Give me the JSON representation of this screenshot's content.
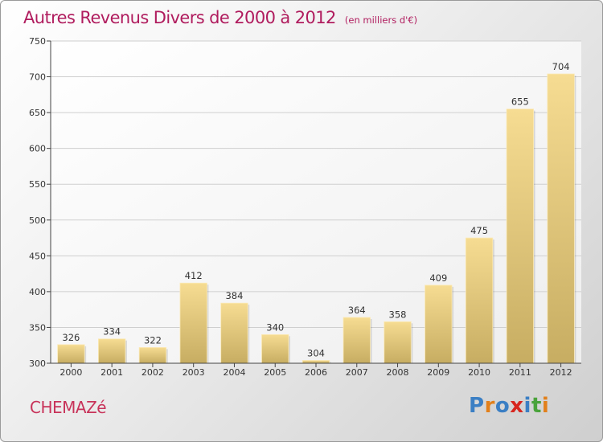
{
  "header": {
    "title": "Autres Revenus Divers de 2000 à 2012",
    "subtitle": "(en milliers d'€)"
  },
  "footer": {
    "commune": "CHEMAZé",
    "logo_text": "Proxiti",
    "logo_colors": [
      "#3b7fc4",
      "#e2801b",
      "#3b7fc4",
      "#d7261f",
      "#3b7fc4",
      "#4aa33b",
      "#e2801b"
    ]
  },
  "chart_data": {
    "type": "bar",
    "title": "Autres Revenus Divers de 2000 à 2012",
    "subtitle": "(en milliers d'€)",
    "xlabel": "",
    "ylabel": "",
    "categories": [
      "2000",
      "2001",
      "2002",
      "2003",
      "2004",
      "2005",
      "2006",
      "2007",
      "2008",
      "2009",
      "2010",
      "2011",
      "2012"
    ],
    "values": [
      326,
      334,
      322,
      412,
      384,
      340,
      304,
      364,
      358,
      409,
      475,
      655,
      704
    ],
    "ylim": [
      300,
      750
    ],
    "yticks": [
      300,
      350,
      400,
      450,
      500,
      550,
      600,
      650,
      700,
      750
    ],
    "grid": true,
    "data_labels": true,
    "colors": {
      "bar_light": "#f6dc92",
      "bar_dark": "#c7ad62",
      "grid": "#cfcfcf",
      "axis": "#444444",
      "plot_bg": "#ffffff"
    }
  }
}
